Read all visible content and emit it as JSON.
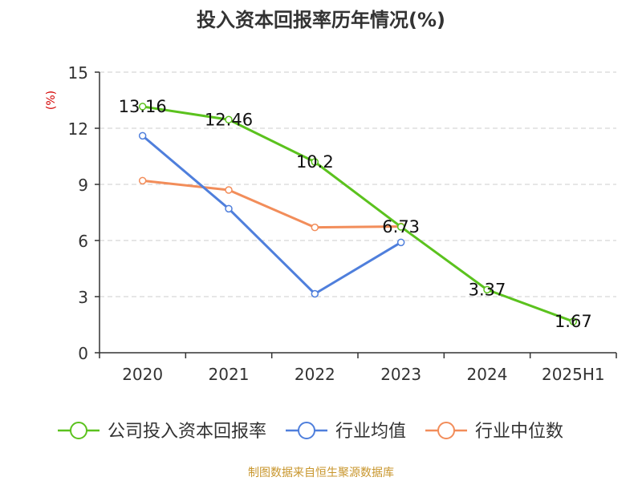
{
  "chart_data": {
    "type": "line",
    "title": "投入资本回报率历年情况(%)",
    "ylabel": "(%)",
    "categories": [
      "2020",
      "2021",
      "2022",
      "2023",
      "2024",
      "2025H1"
    ],
    "ylim": [
      0,
      15
    ],
    "yticks": [
      0,
      3,
      6,
      9,
      12,
      15
    ],
    "grid": true,
    "legend_position": "bottom",
    "series": [
      {
        "name": "公司投入资本回报率",
        "color": "#5bc21e",
        "values": [
          13.16,
          12.46,
          10.2,
          6.73,
          3.37,
          1.67
        ],
        "labels": [
          "13.16",
          "12.46",
          "10.2",
          "6.73",
          "3.37",
          "1.67"
        ]
      },
      {
        "name": "行业均值",
        "color": "#4f7fdc",
        "values": [
          11.6,
          7.7,
          3.15,
          5.9,
          null,
          null
        ]
      },
      {
        "name": "行业中位数",
        "color": "#f28d5a",
        "values": [
          9.2,
          8.7,
          6.7,
          6.75,
          null,
          null
        ]
      }
    ]
  },
  "source": "制图数据来自恒生聚源数据库"
}
